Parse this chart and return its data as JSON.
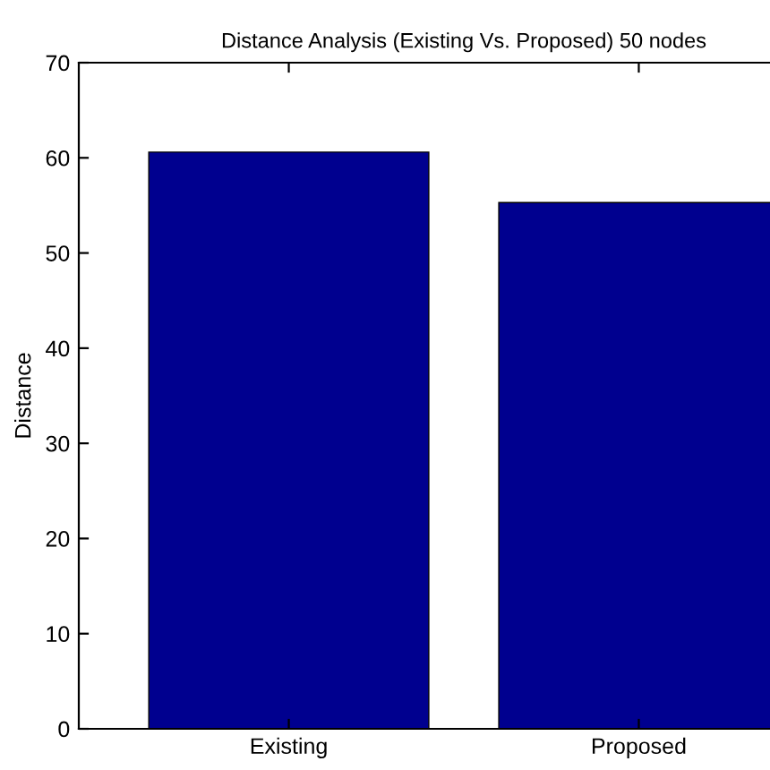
{
  "chart_data": {
    "type": "bar",
    "title": "Distance Analysis (Existing Vs. Proposed) 50 nodes",
    "ylabel": "Distance",
    "categories": [
      "Existing",
      "Proposed"
    ],
    "values": [
      60.6,
      55.3
    ],
    "color": "#00008f",
    "ylim": [
      0,
      70
    ],
    "yticks": [
      0,
      10,
      20,
      30,
      40,
      50,
      60,
      70
    ],
    "grid": false
  }
}
